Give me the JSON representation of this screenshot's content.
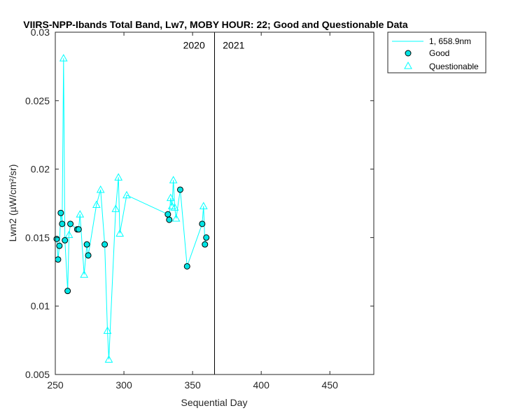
{
  "chart_data": {
    "type": "line",
    "title": "VIIRS-NPP-Ibands Total Band, Lw7, MOBY HOUR: 22;  Good and Questionable Data",
    "xlabel": "Sequential Day",
    "ylabel": "Lwn2 (µW/cm²/sr)",
    "xlim": [
      250,
      482
    ],
    "ylim": [
      0.005,
      0.03
    ],
    "xticks": [
      250,
      300,
      350,
      400,
      450
    ],
    "xtick_labels": [
      "250",
      "300",
      "350",
      "400",
      "450"
    ],
    "yticks": [
      0.005,
      0.01,
      0.015,
      0.02,
      0.025,
      0.03
    ],
    "ytick_labels": [
      "0.005",
      "0.01",
      "0.015",
      "0.02",
      "0.025",
      "0.03"
    ],
    "grid": false,
    "legend_position": "outside-top-right",
    "year_divider_x": 366,
    "annotations": [
      {
        "text": "2020",
        "x": 359,
        "y": 0.0288
      },
      {
        "text": "2021",
        "x": 372,
        "y": 0.0288
      }
    ],
    "series": [
      {
        "name": "1, 658.9nm",
        "kind": "line",
        "color": "#00ffff",
        "x": [
          251,
          252,
          253,
          254,
          255,
          256,
          257,
          259,
          260,
          261,
          266,
          267,
          268,
          271,
          273,
          274,
          280,
          283,
          286,
          288,
          289,
          294,
          296,
          297,
          302,
          332,
          333,
          334,
          335,
          336,
          337,
          338,
          341,
          346,
          357,
          358,
          359,
          360
        ],
        "y": [
          0.0149,
          0.0134,
          0.0144,
          0.0168,
          0.016,
          0.0281,
          0.0148,
          0.0111,
          0.0152,
          0.016,
          0.0156,
          0.0156,
          0.0167,
          0.0123,
          0.0145,
          0.0137,
          0.0174,
          0.0185,
          0.0145,
          0.0082,
          0.0061,
          0.0171,
          0.0194,
          0.0153,
          0.0181,
          0.0167,
          0.0163,
          0.0179,
          0.0173,
          0.0192,
          0.0172,
          0.0164,
          0.0185,
          0.0129,
          0.016,
          0.0173,
          0.0145,
          0.015
        ]
      },
      {
        "name": "Good",
        "kind": "marker-circle",
        "color": "#00e5e5",
        "edge": "#000000",
        "x": [
          251,
          252,
          253,
          254,
          255,
          257,
          259,
          261,
          266,
          267,
          273,
          274,
          286,
          332,
          333,
          341,
          346,
          357,
          359,
          360
        ],
        "y": [
          0.0149,
          0.0134,
          0.0144,
          0.0168,
          0.016,
          0.0148,
          0.0111,
          0.016,
          0.0156,
          0.0156,
          0.0145,
          0.0137,
          0.0145,
          0.0167,
          0.0163,
          0.0185,
          0.0129,
          0.016,
          0.0145,
          0.015
        ]
      },
      {
        "name": "Questionable",
        "kind": "marker-triangle",
        "color": "#00ffff",
        "x": [
          256,
          260,
          268,
          271,
          280,
          283,
          288,
          289,
          294,
          296,
          297,
          302,
          334,
          335,
          336,
          337,
          338,
          358
        ],
        "y": [
          0.0281,
          0.0152,
          0.0167,
          0.0123,
          0.0174,
          0.0185,
          0.0082,
          0.0061,
          0.0171,
          0.0194,
          0.0153,
          0.0181,
          0.0179,
          0.0173,
          0.0192,
          0.0172,
          0.0164,
          0.0173
        ]
      }
    ]
  }
}
